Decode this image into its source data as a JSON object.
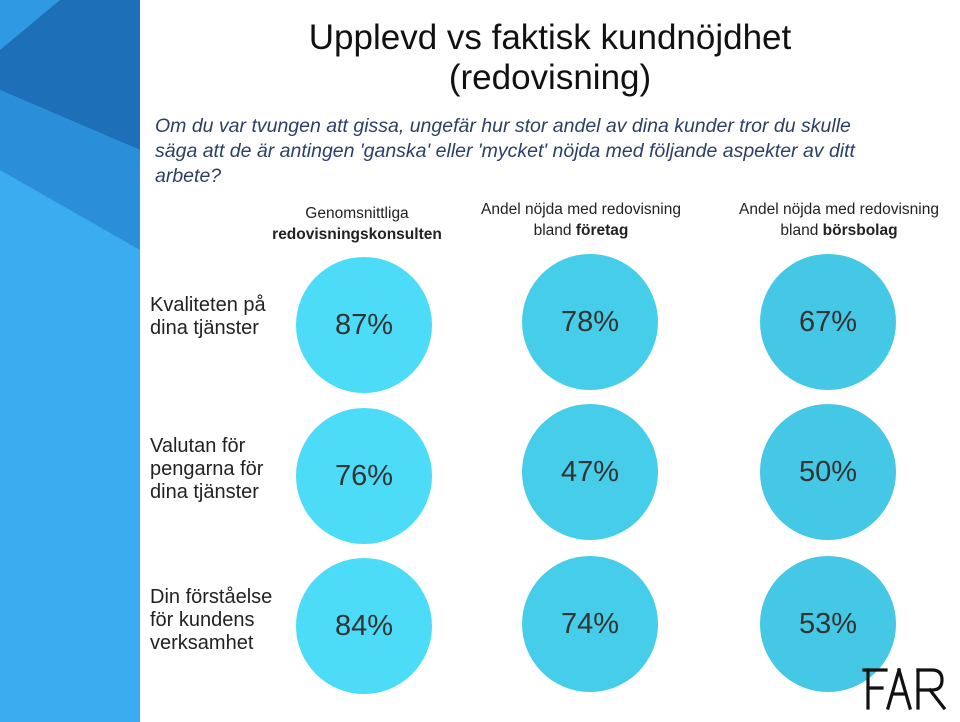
{
  "title_line1": "Upplevd vs faktisk kundnöjdhet",
  "title_line2": "(redovisning)",
  "question": "Om du var tvungen att gissa, ungefär hur stor andel av dina kunder tror du skulle säga att de är antingen  'ganska' eller 'mycket' nöjda med följande aspekter av ditt arbete?",
  "columns": [
    {
      "line1": "Genomsnittliga",
      "line2": "redovisningskonsulten"
    },
    {
      "line1": "Andel nöjda med redovisning",
      "line2_prefix": "bland ",
      "line2_bold": "företag"
    },
    {
      "line1": "Andel nöjda med redovisning",
      "line2_prefix": "bland ",
      "line2_bold": "börsbolag"
    }
  ],
  "rows": [
    {
      "label": "Kvaliteten på dina tjänster",
      "values": [
        "87%",
        "78%",
        "67%"
      ]
    },
    {
      "label": "Valutan för pengarna för dina tjänster",
      "values": [
        "76%",
        "47%",
        "50%"
      ]
    },
    {
      "label": "Din förståelse för kundens verksamhet",
      "values": [
        "84%",
        "74%",
        "53%"
      ]
    }
  ],
  "logo": "FAR",
  "colors": {
    "circle_col1": "#4cdcf8",
    "circle_col2": "#45cde9",
    "circle_col3": "#44c8e6",
    "side_dark": "#1d6fb5",
    "side_light": "#39aef0"
  }
}
